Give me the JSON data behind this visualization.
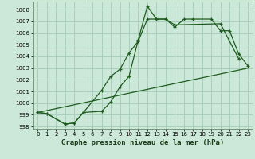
{
  "bg_color": "#cce8d8",
  "grid_color": "#aacfbe",
  "line_color": "#1e5c1e",
  "title": "Graphe pression niveau de la mer (hPa)",
  "xlim": [
    -0.5,
    23.5
  ],
  "ylim": [
    997.8,
    1008.7
  ],
  "xticks": [
    0,
    1,
    2,
    3,
    4,
    5,
    6,
    7,
    8,
    9,
    10,
    11,
    12,
    13,
    14,
    15,
    16,
    17,
    18,
    19,
    20,
    21,
    22,
    23
  ],
  "yticks": [
    998,
    999,
    1000,
    1001,
    1002,
    1003,
    1004,
    1005,
    1006,
    1007,
    1008
  ],
  "line1_x": [
    0,
    1,
    3,
    4,
    5,
    7,
    8,
    9,
    10,
    11,
    12,
    13,
    14,
    15,
    16,
    17,
    19,
    20,
    21,
    22,
    23
  ],
  "line1_y": [
    999.2,
    999.1,
    998.2,
    998.3,
    999.2,
    999.3,
    1000.1,
    1001.4,
    1002.3,
    1005.4,
    1008.3,
    1007.2,
    1007.2,
    1006.5,
    1007.2,
    1007.2,
    1007.2,
    1006.2,
    1006.2,
    1004.2,
    1003.2
  ],
  "line2_x": [
    0,
    1,
    3,
    4,
    5,
    7,
    8,
    9,
    10,
    11,
    12,
    13,
    14,
    15,
    20,
    22
  ],
  "line2_y": [
    999.2,
    999.1,
    998.2,
    998.3,
    999.2,
    1001.1,
    1002.3,
    1002.9,
    1004.3,
    1005.3,
    1007.2,
    1007.2,
    1007.2,
    1006.7,
    1006.8,
    1003.8
  ],
  "line3_x": [
    0,
    23
  ],
  "line3_y": [
    999.2,
    1003.0
  ],
  "title_fontsize": 6.5,
  "tick_fontsize": 5.0
}
